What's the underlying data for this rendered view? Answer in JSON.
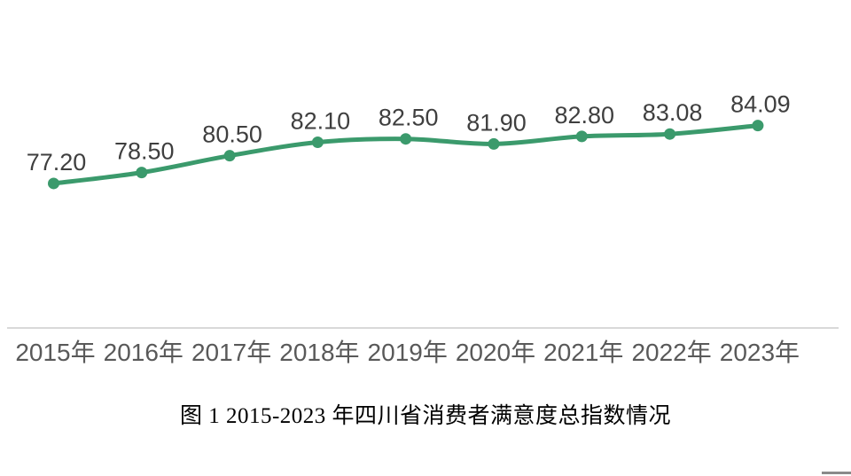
{
  "chart_data": {
    "type": "line",
    "categories": [
      "2015年",
      "2016年",
      "2017年",
      "2018年",
      "2019年",
      "2020年",
      "2021年",
      "2022年",
      "2023年"
    ],
    "values": [
      77.2,
      78.5,
      80.5,
      82.1,
      82.5,
      81.9,
      82.8,
      83.08,
      84.09
    ],
    "data_labels": [
      "77.20",
      "78.50",
      "80.50",
      "82.10",
      "82.50",
      "81.90",
      "82.80",
      "83.08",
      "84.09"
    ],
    "title": "",
    "xlabel": "",
    "ylabel": "",
    "ylim": [
      60,
      88
    ],
    "grid": false,
    "legend": false,
    "smooth_line": true,
    "caption": "图 1  2015-2023 年四川省消费者满意度总指数情况",
    "colors": {
      "line": "#3b9a6c",
      "marker": "#3b9a6c",
      "data_label": "#3f3f3f",
      "tick_label": "#595959",
      "axis_line": "#d9d9d9",
      "background": "#ffffff"
    }
  }
}
